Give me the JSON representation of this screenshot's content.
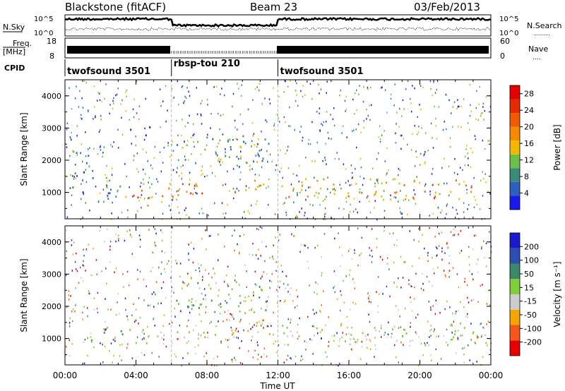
{
  "header": {
    "station": "Blackstone (fitACF)",
    "beam": "Beam 23",
    "date": "03/Feb/2013"
  },
  "top_labels": {
    "nsky": "N.Sky",
    "nsearch": "N.Search",
    "nsearch_dots": "........",
    "freq": "Freq.",
    "freq_unit": "[MHz]",
    "nave": "Nave",
    "nave_dots": "....",
    "cpid": "CPID",
    "noise_ticks": [
      "10^5",
      "10^0"
    ],
    "freq_ticks": [
      "18",
      "8"
    ],
    "nave_ticks": [
      "60",
      "0"
    ]
  },
  "cpid_segments": [
    {
      "label": "twofsound 3501",
      "start": 0,
      "end": 6
    },
    {
      "label": "rbsp-tou 210",
      "start": 6,
      "end": 12
    },
    {
      "label": "twofsound 3501",
      "start": 12,
      "end": 24
    }
  ],
  "colors": {
    "power": [
      "#1a1aee",
      "#2d5fbf",
      "#3a8a7a",
      "#6dbf4a",
      "#f5b800",
      "#f58a00",
      "#f05a00",
      "#e62a00",
      "#e60000"
    ],
    "velocity": [
      "#e60000",
      "#f5571a",
      "#f5a500",
      "#cccccc",
      "#7fcf3a",
      "#3a8a6a",
      "#2d4fb0",
      "#1a1acc"
    ]
  },
  "chart_data": [
    {
      "type": "heatmap",
      "name": "power-panel",
      "xlabel": "",
      "ylabel": "Slant Range [km]",
      "xlim": [
        0,
        24
      ],
      "ylim": [
        180,
        4500
      ],
      "y_ticks": [
        "1000",
        "2000",
        "3000",
        "4000"
      ],
      "colorbar": {
        "label": "Power [dB]",
        "ticks": [
          "4",
          "8",
          "12",
          "16",
          "20",
          "24",
          "28"
        ],
        "range": [
          0,
          30
        ]
      },
      "regions": [
        {
          "x": [
            1.2,
            3.5
          ],
          "y": [
            800,
            1500
          ],
          "value": 8
        },
        {
          "x": [
            3.5,
            6
          ],
          "y": [
            850,
            1300
          ],
          "value": 20
        },
        {
          "x": [
            6,
            10
          ],
          "y": [
            900,
            1300
          ],
          "value": 22
        },
        {
          "x": [
            10,
            11.8
          ],
          "y": [
            1000,
            1500
          ],
          "value": 14
        },
        {
          "x": [
            6.2,
            11.5
          ],
          "y": [
            1800,
            2800
          ],
          "value": 10
        },
        {
          "x": [
            12.2,
            24
          ],
          "y": [
            800,
            1500
          ],
          "value": 18
        },
        {
          "x": [
            0.4,
            1.4
          ],
          "y": [
            1000,
            2400
          ],
          "value": 6
        },
        {
          "x": [
            3.2,
            4.8
          ],
          "y": [
            2800,
            3100
          ],
          "value": 5
        }
      ]
    },
    {
      "type": "heatmap",
      "name": "velocity-panel",
      "xlabel": "Time UT",
      "ylabel": "Slant Range [km]",
      "xlim": [
        0,
        24
      ],
      "ylim": [
        180,
        4500
      ],
      "x_ticks": [
        "00:00",
        "04:00",
        "08:00",
        "12:00",
        "16:00",
        "20:00",
        "00:00"
      ],
      "y_ticks": [
        "1000",
        "2000",
        "3000",
        "4000"
      ],
      "colorbar": {
        "label": "Velocity [m s⁻¹]",
        "ticks": [
          "-200",
          "-100",
          "-50",
          "-15",
          "15",
          "50",
          "100",
          "200"
        ],
        "range": [
          -250,
          250
        ]
      },
      "regions": [
        {
          "x": [
            1.2,
            3.3
          ],
          "y": [
            900,
            1400
          ],
          "value": 60
        },
        {
          "x": [
            3.3,
            6
          ],
          "y": [
            850,
            1300
          ],
          "value": 0
        },
        {
          "x": [
            6,
            9
          ],
          "y": [
            900,
            1300
          ],
          "value": 0
        },
        {
          "x": [
            9,
            11.8
          ],
          "y": [
            1000,
            1600
          ],
          "value": -60
        },
        {
          "x": [
            6.2,
            11.5
          ],
          "y": [
            1800,
            2800
          ],
          "value": 40
        },
        {
          "x": [
            12.2,
            24
          ],
          "y": [
            800,
            1500
          ],
          "value": 0
        }
      ]
    }
  ]
}
